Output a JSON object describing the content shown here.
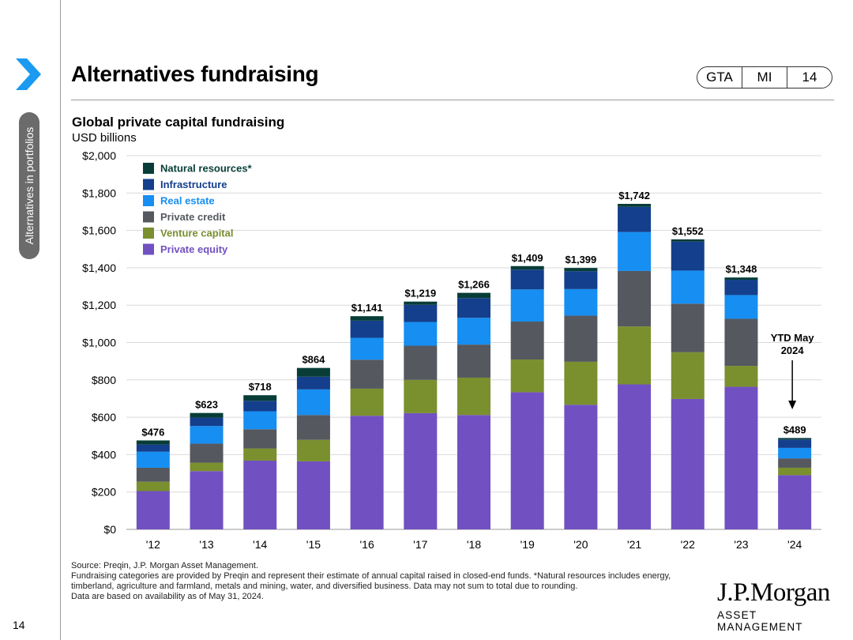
{
  "header": {
    "title": "Alternatives fundraising",
    "pill": [
      "GTA",
      "MI",
      "14"
    ]
  },
  "sidebar": {
    "section_label": "Alternatives in portfolios",
    "icon": "chevron-right-icon",
    "accent_color": "#1a9af0"
  },
  "chart_data": {
    "type": "bar",
    "stacked": true,
    "title": "Global private capital fundraising",
    "subtitle": "USD billions",
    "categories": [
      "'12",
      "'13",
      "'14",
      "'15",
      "'16",
      "'17",
      "'18",
      "'19",
      "'20",
      "'21",
      "'22",
      "'23",
      "'24"
    ],
    "series": [
      {
        "name": "Private equity",
        "color": "#7150c2",
        "values": [
          205,
          312,
          368,
          364,
          608,
          622,
          612,
          734,
          667,
          776,
          698,
          763,
          290
        ]
      },
      {
        "name": "Venture capital",
        "color": "#7a8f2e",
        "values": [
          50,
          45,
          65,
          115,
          145,
          178,
          200,
          175,
          230,
          310,
          250,
          112,
          40
        ]
      },
      {
        "name": "Private credit",
        "color": "#55585f",
        "values": [
          75,
          102,
          103,
          133,
          155,
          183,
          177,
          203,
          247,
          297,
          260,
          252,
          50
        ]
      },
      {
        "name": "Real estate",
        "color": "#168ef2",
        "values": [
          86,
          94,
          96,
          137,
          117,
          127,
          143,
          172,
          142,
          208,
          177,
          127,
          56
        ]
      },
      {
        "name": "Infrastructure",
        "color": "#133f8c",
        "values": [
          38,
          45,
          56,
          68,
          92,
          92,
          106,
          106,
          96,
          135,
          155,
          82,
          45
        ]
      },
      {
        "name": "Natural resources*",
        "color": "#083d37",
        "values": [
          22,
          25,
          30,
          47,
          24,
          17,
          28,
          19,
          17,
          16,
          12,
          12,
          8
        ]
      }
    ],
    "totals": [
      "$476",
      "$623",
      "$718",
      "$864",
      "$1,141",
      "$1,219",
      "$1,266",
      "$1,409",
      "$1,399",
      "$1,742",
      "$1,552",
      "$1,348",
      "$489"
    ],
    "ylim": [
      0,
      2000
    ],
    "yticks": [
      0,
      200,
      400,
      600,
      800,
      1000,
      1200,
      1400,
      1600,
      1800,
      2000
    ],
    "ytick_labels": [
      "$0",
      "$200",
      "$400",
      "$600",
      "$800",
      "$1,000",
      "$1,200",
      "$1,400",
      "$1,600",
      "$1,800",
      "$2,000"
    ],
    "grid": true,
    "legend_position": "top-left",
    "annotation": {
      "lines": [
        "YTD May",
        "2024"
      ],
      "target_category": "'24"
    },
    "xlabel": "",
    "ylabel": ""
  },
  "footnotes": [
    "Source: Preqin, J.P. Morgan Asset Management.",
    "Fundraising categories are provided by Preqin and represent their estimate of annual capital raised in closed-end funds. *Natural resources includes energy, timberland, agriculture and farmland, metals and mining, water, and diversified business. Data may not sum to total due to rounding.",
    "Data are based on availability as of May 31, 2024."
  ],
  "page_number": "14",
  "logo": {
    "main": "J.P.Morgan",
    "sub": "ASSET MANAGEMENT"
  }
}
